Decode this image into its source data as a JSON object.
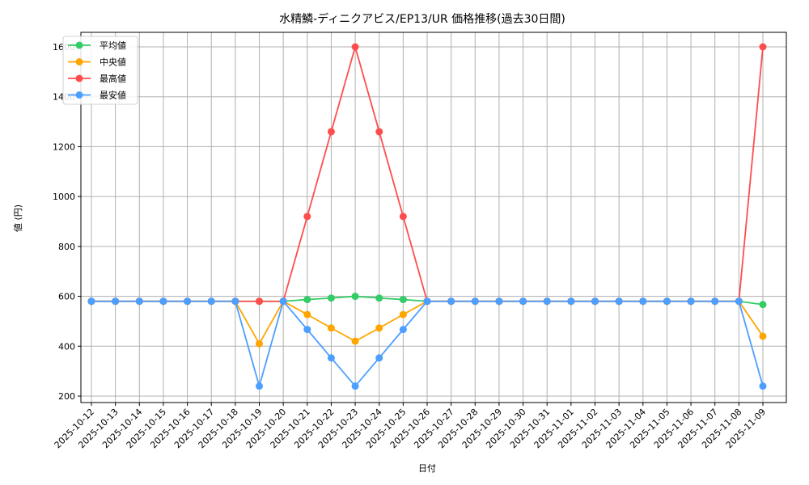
{
  "chart_data": {
    "type": "line",
    "title": "水精鱗-ディニクアビス/EP13/UR 価格推移(過去30日間)",
    "xlabel": "日付",
    "ylabel": "値 (円)",
    "ylim": [
      170,
      1665
    ],
    "yticks": [
      200,
      400,
      600,
      800,
      1000,
      1200,
      1400,
      1600
    ],
    "grid": true,
    "legend_position": "upper left",
    "categories": [
      "2025-10-12",
      "2025-10-13",
      "2025-10-14",
      "2025-10-15",
      "2025-10-16",
      "2025-10-17",
      "2025-10-18",
      "2025-10-19",
      "2025-10-20",
      "2025-10-21",
      "2025-10-22",
      "2025-10-23",
      "2025-10-24",
      "2025-10-25",
      "2025-10-26",
      "2025-10-27",
      "2025-10-28",
      "2025-10-29",
      "2025-10-30",
      "2025-10-31",
      "2025-11-01",
      "2025-11-02",
      "2025-11-03",
      "2025-11-04",
      "2025-11-05",
      "2025-11-06",
      "2025-11-07",
      "2025-11-08",
      "2025-11-09"
    ],
    "series": [
      {
        "name": "平均値",
        "color": "#33cc66",
        "values": [
          580,
          580,
          580,
          580,
          580,
          580,
          580,
          580,
          580,
          587,
          593,
          600,
          593,
          587,
          580,
          580,
          580,
          580,
          580,
          580,
          580,
          580,
          580,
          580,
          580,
          580,
          580,
          580,
          567
        ]
      },
      {
        "name": "中央値",
        "color": "#ffa500",
        "values": [
          580,
          580,
          580,
          580,
          580,
          580,
          580,
          410,
          580,
          527,
          473,
          420,
          473,
          527,
          580,
          580,
          580,
          580,
          580,
          580,
          580,
          580,
          580,
          580,
          580,
          580,
          580,
          580,
          440
        ]
      },
      {
        "name": "最高値",
        "color": "#ff4d4d",
        "values": [
          580,
          580,
          580,
          580,
          580,
          580,
          580,
          580,
          580,
          920,
          1260,
          1600,
          1260,
          920,
          580,
          580,
          580,
          580,
          580,
          580,
          580,
          580,
          580,
          580,
          580,
          580,
          580,
          580,
          1600
        ]
      },
      {
        "name": "最安値",
        "color": "#4d9fff",
        "values": [
          580,
          580,
          580,
          580,
          580,
          580,
          580,
          240,
          580,
          467,
          353,
          240,
          353,
          467,
          580,
          580,
          580,
          580,
          580,
          580,
          580,
          580,
          580,
          580,
          580,
          580,
          580,
          580,
          240
        ]
      }
    ]
  }
}
